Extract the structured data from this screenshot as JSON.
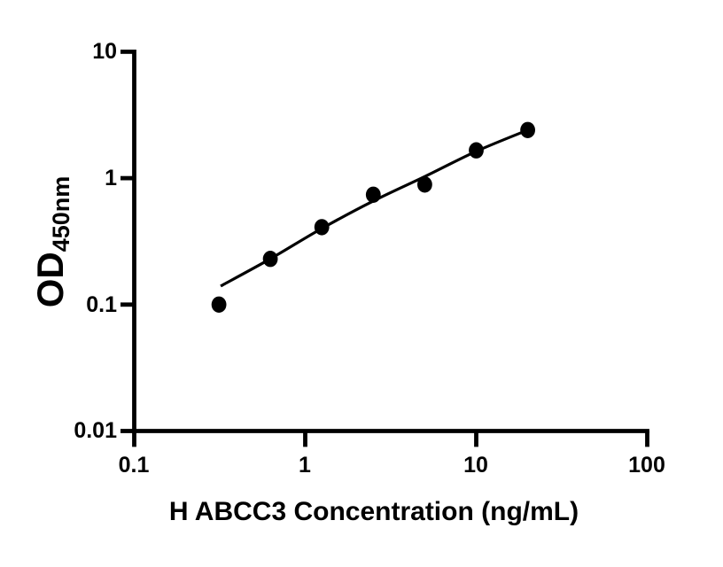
{
  "figure": {
    "background": "#ffffff"
  },
  "chart_data": {
    "type": "scatter",
    "title": "",
    "xlabel": "H ABCC3 Concentration (ng/mL)",
    "ylabel_main": "OD",
    "ylabel_sub": "450nm",
    "x_scale": "log",
    "y_scale": "log",
    "xlim": [
      0.1,
      100
    ],
    "ylim": [
      0.01,
      10
    ],
    "grid": false,
    "legend": "none",
    "x_ticks": [
      {
        "v": 0.1,
        "label": "0.1"
      },
      {
        "v": 1,
        "label": "1"
      },
      {
        "v": 10,
        "label": "10"
      },
      {
        "v": 100,
        "label": "100"
      }
    ],
    "y_ticks": [
      {
        "v": 0.01,
        "label": "0.01"
      },
      {
        "v": 0.1,
        "label": "0.1"
      },
      {
        "v": 1,
        "label": "1"
      },
      {
        "v": 10,
        "label": "10"
      }
    ],
    "series": [
      {
        "name": "standard-points",
        "type": "scatter",
        "x": [
          0.313,
          0.625,
          1.25,
          2.5,
          5,
          10,
          20
        ],
        "y": [
          0.1,
          0.23,
          0.41,
          0.74,
          0.89,
          1.66,
          2.4
        ]
      },
      {
        "name": "fit-curve",
        "type": "line",
        "x": [
          0.32,
          0.625,
          1.25,
          2.5,
          5,
          10,
          20
        ],
        "y": [
          0.14,
          0.23,
          0.4,
          0.66,
          1.03,
          1.63,
          2.4
        ]
      }
    ],
    "marker_color": "#000000",
    "line_color": "#000000",
    "axis_color": "#000000"
  }
}
